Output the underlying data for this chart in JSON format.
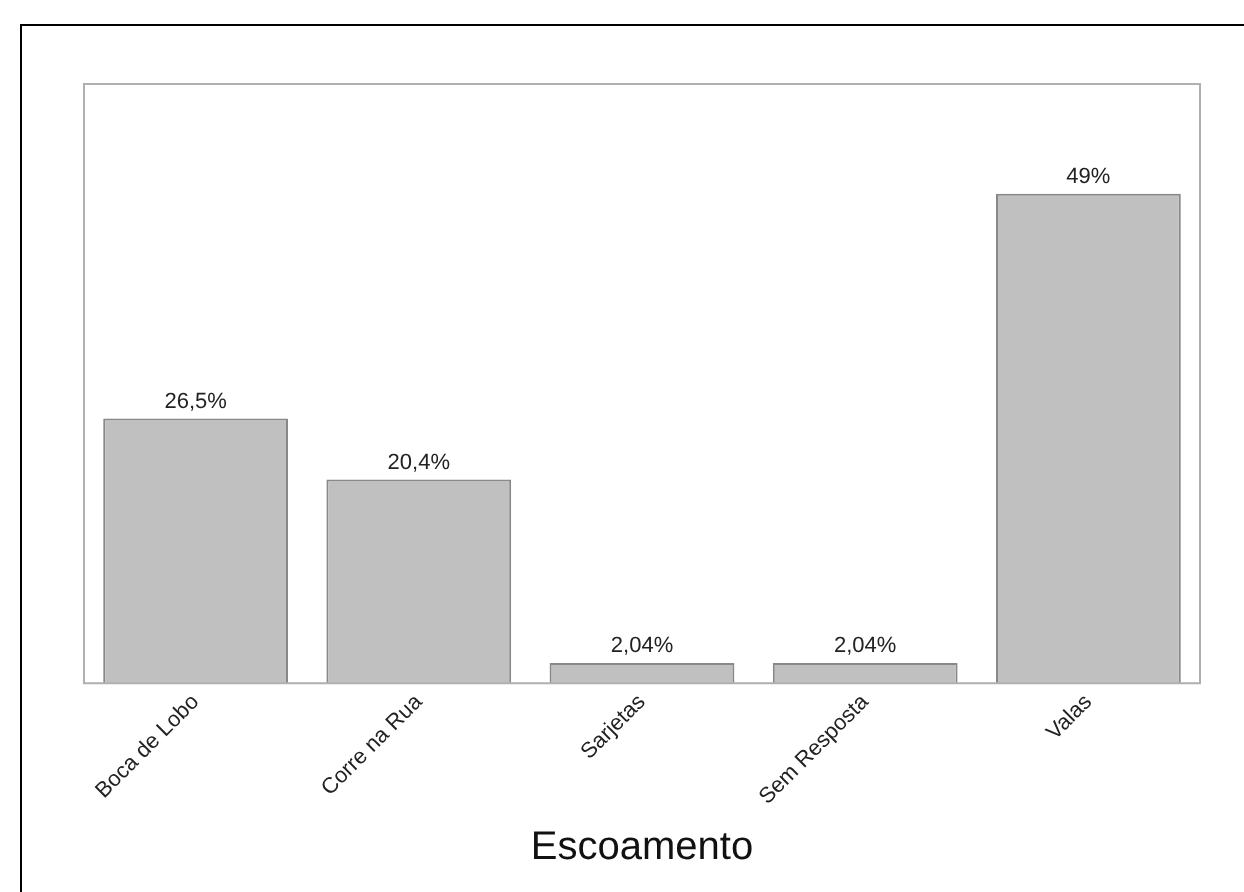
{
  "chart_data": {
    "type": "bar",
    "xlabel": "Escoamento",
    "categories": [
      "Boca de Lobo",
      "Corre na Rua",
      "Sarjetas",
      "Sem Resposta",
      "Valas"
    ],
    "values": [
      26.5,
      20.4,
      2.04,
      2.04,
      49
    ],
    "value_labels": [
      "26,5%",
      "20,4%",
      "2,04%",
      "2,04%",
      "49%"
    ],
    "color": "#c0c0c0",
    "grid": false,
    "legend": false
  }
}
